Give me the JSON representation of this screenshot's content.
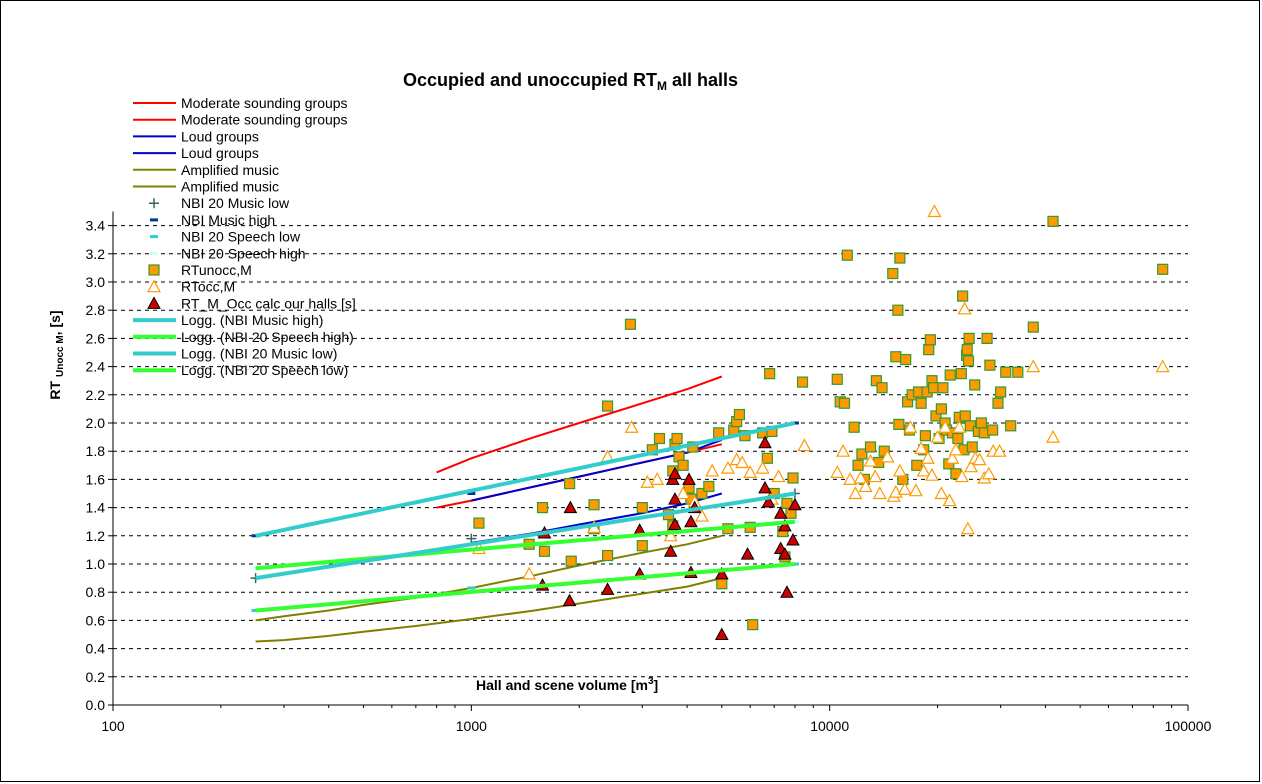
{
  "chart_data": {
    "type": "scatter",
    "title_main": "Occupied and unoccupied RT",
    "title_sub": "M",
    "title_suffix": " all halls",
    "xlabel_main": "Hall and scene volume [m",
    "xlabel_sup": "3",
    "xlabel_end": "]",
    "ylabel_main": "RT ",
    "ylabel_sub": "Unocc M",
    "ylabel_end": ", [s]",
    "x_scale": "log",
    "xlim": [
      100,
      100000
    ],
    "ylim": [
      0,
      3.5
    ],
    "x_ticks": [
      "100",
      "1000",
      "10000",
      "100000"
    ],
    "y_ticks": [
      "0.0",
      "0.2",
      "0.4",
      "0.6",
      "0.8",
      "1.0",
      "1.2",
      "1.4",
      "1.6",
      "1.8",
      "2.0",
      "2.2",
      "2.4",
      "2.6",
      "2.8",
      "3.0",
      "3.2",
      "3.4"
    ],
    "grid": "horizontal dashed",
    "legend_position": "top-left",
    "series": [
      {
        "name": "Moderate sounding groups",
        "kind": "line",
        "color": "#ff0000",
        "points": [
          [
            800,
            1.65
          ],
          [
            1000,
            1.75
          ],
          [
            1500,
            1.9
          ],
          [
            2000,
            2.0
          ],
          [
            3000,
            2.14
          ],
          [
            4000,
            2.24
          ],
          [
            5000,
            2.33
          ]
        ]
      },
      {
        "name": "Moderate sounding groups",
        "kind": "line",
        "color": "#ff0000",
        "points": [
          [
            800,
            1.4
          ],
          [
            1000,
            1.45
          ],
          [
            1500,
            1.55
          ],
          [
            2000,
            1.62
          ],
          [
            3000,
            1.72
          ],
          [
            4000,
            1.79
          ],
          [
            5000,
            1.85
          ]
        ]
      },
      {
        "name": "Loud groups",
        "kind": "line",
        "color": "#0000cc",
        "points": [
          [
            1000,
            1.45
          ],
          [
            1500,
            1.55
          ],
          [
            2000,
            1.62
          ],
          [
            3000,
            1.72
          ],
          [
            4000,
            1.79
          ],
          [
            5000,
            1.88
          ]
        ]
      },
      {
        "name": "Loud groups",
        "kind": "line",
        "color": "#0000cc",
        "points": [
          [
            1000,
            1.15
          ],
          [
            1500,
            1.22
          ],
          [
            2000,
            1.28
          ],
          [
            3000,
            1.36
          ],
          [
            4000,
            1.43
          ],
          [
            5000,
            1.5
          ]
        ]
      },
      {
        "name": "Amplified music",
        "kind": "line",
        "color": "#808000",
        "points": [
          [
            250,
            0.6
          ],
          [
            300,
            0.63
          ],
          [
            400,
            0.67
          ],
          [
            500,
            0.71
          ],
          [
            700,
            0.76
          ],
          [
            1000,
            0.83
          ],
          [
            1500,
            0.92
          ],
          [
            2000,
            0.99
          ],
          [
            3000,
            1.08
          ],
          [
            4000,
            1.14
          ],
          [
            5000,
            1.2
          ]
        ]
      },
      {
        "name": "Amplified music",
        "kind": "line",
        "color": "#808000",
        "points": [
          [
            250,
            0.45
          ],
          [
            300,
            0.46
          ],
          [
            400,
            0.49
          ],
          [
            500,
            0.52
          ],
          [
            700,
            0.56
          ],
          [
            1000,
            0.61
          ],
          [
            1500,
            0.67
          ],
          [
            2000,
            0.72
          ],
          [
            3000,
            0.79
          ],
          [
            4000,
            0.84
          ],
          [
            5000,
            0.9
          ]
        ]
      },
      {
        "name": "NBI 20 Music low",
        "kind": "marker-plus",
        "color": "#336666",
        "points": [
          [
            250,
            0.9
          ],
          [
            1000,
            1.18
          ],
          [
            8000,
            1.5
          ]
        ]
      },
      {
        "name": "NBI Music high",
        "kind": "marker-dash",
        "color": "#003399",
        "points": [
          [
            250,
            1.2
          ],
          [
            1000,
            1.5
          ],
          [
            8000,
            2.0
          ]
        ]
      },
      {
        "name": "NBI 20 Speech low",
        "kind": "marker-dash",
        "color": "#33cccc",
        "points": [
          [
            250,
            0.67
          ],
          [
            1000,
            0.83
          ],
          [
            8000,
            1.0
          ]
        ]
      },
      {
        "name": "NBI 20 Speech high",
        "kind": "marker-dash",
        "color": "#ccffff",
        "points": [
          [
            250,
            0.97
          ],
          [
            1000,
            1.1
          ],
          [
            8000,
            1.3
          ]
        ]
      },
      {
        "name": "RTunocc,M",
        "kind": "marker-square",
        "color": "#ff9900",
        "stroke": "#339933",
        "points": [
          [
            1050,
            1.29
          ],
          [
            1450,
            1.14
          ],
          [
            1580,
            1.4
          ],
          [
            1600,
            1.09
          ],
          [
            1880,
            1.57
          ],
          [
            1900,
            1.02
          ],
          [
            2200,
            1.42
          ],
          [
            2200,
            1.25
          ],
          [
            2400,
            1.06
          ],
          [
            2400,
            2.12
          ],
          [
            2780,
            2.7
          ],
          [
            3000,
            1.13
          ],
          [
            3000,
            1.4
          ],
          [
            3200,
            1.81
          ],
          [
            3350,
            1.89
          ],
          [
            3550,
            1.35
          ],
          [
            3650,
            1.27
          ],
          [
            3650,
            1.66
          ],
          [
            3700,
            1.85
          ],
          [
            3750,
            1.89
          ],
          [
            3800,
            1.76
          ],
          [
            3900,
            1.7
          ],
          [
            4050,
            1.54
          ],
          [
            4100,
            1.46
          ],
          [
            4150,
            1.83
          ],
          [
            4400,
            1.5
          ],
          [
            4600,
            1.55
          ],
          [
            4900,
            1.93
          ],
          [
            5000,
            0.86
          ],
          [
            5200,
            1.25
          ],
          [
            5400,
            1.95
          ],
          [
            5500,
            2.01
          ],
          [
            5600,
            2.06
          ],
          [
            5800,
            1.91
          ],
          [
            6000,
            1.26
          ],
          [
            6100,
            0.57
          ],
          [
            6500,
            1.93
          ],
          [
            6700,
            1.75
          ],
          [
            6800,
            2.35
          ],
          [
            6900,
            1.94
          ],
          [
            7000,
            1.5
          ],
          [
            7400,
            1.23
          ],
          [
            7500,
            1.05
          ],
          [
            7600,
            1.43
          ],
          [
            7800,
            1.36
          ],
          [
            7900,
            1.61
          ],
          [
            8400,
            2.29
          ],
          [
            10500,
            2.31
          ],
          [
            10700,
            2.15
          ],
          [
            11000,
            2.14
          ],
          [
            11200,
            3.19
          ],
          [
            11700,
            1.97
          ],
          [
            12000,
            1.7
          ],
          [
            12300,
            1.78
          ],
          [
            12500,
            1.6
          ],
          [
            13000,
            1.83
          ],
          [
            13500,
            2.3
          ],
          [
            13700,
            1.72
          ],
          [
            14000,
            2.25
          ],
          [
            14200,
            1.8
          ],
          [
            15000,
            3.06
          ],
          [
            15300,
            2.47
          ],
          [
            15500,
            2.8
          ],
          [
            15600,
            1.99
          ],
          [
            15700,
            3.17
          ],
          [
            16000,
            1.6
          ],
          [
            16300,
            2.45
          ],
          [
            16500,
            2.15
          ],
          [
            16700,
            1.95
          ],
          [
            17000,
            2.2
          ],
          [
            17500,
            1.7
          ],
          [
            17700,
            2.22
          ],
          [
            18000,
            2.14
          ],
          [
            18300,
            1.81
          ],
          [
            18500,
            1.91
          ],
          [
            18700,
            2.22
          ],
          [
            18900,
            2.52
          ],
          [
            19100,
            2.59
          ],
          [
            19300,
            2.3
          ],
          [
            19500,
            2.25
          ],
          [
            19800,
            2.05
          ],
          [
            20200,
            1.89
          ],
          [
            20500,
            2.1
          ],
          [
            20700,
            2.25
          ],
          [
            21000,
            2.0
          ],
          [
            21200,
            1.95
          ],
          [
            21500,
            1.71
          ],
          [
            21700,
            2.34
          ],
          [
            22000,
            1.93
          ],
          [
            22500,
            1.64
          ],
          [
            22800,
            1.89
          ],
          [
            23000,
            2.04
          ],
          [
            23300,
            2.35
          ],
          [
            23500,
            2.9
          ],
          [
            23700,
            1.81
          ],
          [
            23900,
            2.05
          ],
          [
            24100,
            2.48
          ],
          [
            24200,
            2.52
          ],
          [
            24400,
            2.44
          ],
          [
            24500,
            2.6
          ],
          [
            24700,
            1.98
          ],
          [
            25000,
            1.83
          ],
          [
            25400,
            2.27
          ],
          [
            26000,
            1.94
          ],
          [
            26500,
            2.0
          ],
          [
            27000,
            1.93
          ],
          [
            27500,
            2.6
          ],
          [
            28000,
            2.41
          ],
          [
            28500,
            1.95
          ],
          [
            29500,
            2.14
          ],
          [
            30000,
            2.22
          ],
          [
            31000,
            2.36
          ],
          [
            32000,
            1.98
          ],
          [
            33500,
            2.36
          ],
          [
            37000,
            2.68
          ],
          [
            42000,
            3.43
          ],
          [
            85000,
            3.09
          ]
        ]
      },
      {
        "name": "RTocc,M",
        "kind": "marker-triangle-open",
        "color": "#ff9900",
        "points": [
          [
            1050,
            1.11
          ],
          [
            1450,
            0.93
          ],
          [
            2200,
            1.26
          ],
          [
            2400,
            1.76
          ],
          [
            2800,
            1.97
          ],
          [
            3100,
            1.58
          ],
          [
            3300,
            1.6
          ],
          [
            3600,
            1.2
          ],
          [
            3900,
            1.5
          ],
          [
            4200,
            1.44
          ],
          [
            4400,
            1.34
          ],
          [
            4700,
            1.66
          ],
          [
            5200,
            1.68
          ],
          [
            5500,
            1.74
          ],
          [
            5700,
            1.72
          ],
          [
            6000,
            1.65
          ],
          [
            6500,
            1.68
          ],
          [
            6900,
            1.46
          ],
          [
            7200,
            1.62
          ],
          [
            8500,
            1.84
          ],
          [
            10500,
            1.65
          ],
          [
            10900,
            1.8
          ],
          [
            11400,
            1.6
          ],
          [
            11800,
            1.5
          ],
          [
            12200,
            1.61
          ],
          [
            12600,
            1.55
          ],
          [
            13000,
            1.73
          ],
          [
            13400,
            1.62
          ],
          [
            13800,
            1.5
          ],
          [
            14500,
            1.76
          ],
          [
            15100,
            1.48
          ],
          [
            15300,
            1.51
          ],
          [
            15700,
            1.66
          ],
          [
            16200,
            1.53
          ],
          [
            16800,
            1.97
          ],
          [
            17400,
            1.52
          ],
          [
            18000,
            1.82
          ],
          [
            18300,
            1.66
          ],
          [
            18800,
            1.75
          ],
          [
            19300,
            1.63
          ],
          [
            19600,
            3.5
          ],
          [
            20000,
            1.9
          ],
          [
            20500,
            1.5
          ],
          [
            21000,
            1.97
          ],
          [
            21600,
            1.45
          ],
          [
            22000,
            1.75
          ],
          [
            22500,
            1.81
          ],
          [
            23000,
            1.97
          ],
          [
            23400,
            1.62
          ],
          [
            23800,
            2.81
          ],
          [
            24300,
            1.25
          ],
          [
            24800,
            1.69
          ],
          [
            25500,
            1.75
          ],
          [
            26200,
            1.74
          ],
          [
            27000,
            1.61
          ],
          [
            27800,
            1.64
          ],
          [
            28600,
            1.8
          ],
          [
            29800,
            1.8
          ],
          [
            37000,
            2.4
          ],
          [
            42000,
            1.9
          ],
          [
            85000,
            2.4
          ]
        ]
      },
      {
        "name": "RT_M_Occ calc our halls [s]",
        "kind": "marker-triangle-filled",
        "color": "#cc0000",
        "points": [
          [
            1580,
            0.85
          ],
          [
            1600,
            1.22
          ],
          [
            1880,
            0.74
          ],
          [
            1890,
            1.4
          ],
          [
            2400,
            0.82
          ],
          [
            2950,
            0.93
          ],
          [
            2950,
            1.24
          ],
          [
            3600,
            1.09
          ],
          [
            3650,
            1.6
          ],
          [
            3700,
            1.64
          ],
          [
            3700,
            1.28
          ],
          [
            3700,
            1.46
          ],
          [
            4050,
            1.6
          ],
          [
            4100,
            1.3
          ],
          [
            4100,
            0.94
          ],
          [
            4200,
            1.4
          ],
          [
            5000,
            0.5
          ],
          [
            5000,
            0.93
          ],
          [
            5900,
            1.07
          ],
          [
            6600,
            1.54
          ],
          [
            6600,
            1.86
          ],
          [
            6750,
            1.44
          ],
          [
            7300,
            1.36
          ],
          [
            7300,
            1.11
          ],
          [
            7500,
            1.07
          ],
          [
            7500,
            1.27
          ],
          [
            7600,
            0.8
          ],
          [
            7900,
            1.17
          ],
          [
            8000,
            1.42
          ]
        ]
      },
      {
        "name": "Logg. (NBI Music high)",
        "kind": "line",
        "color": "#33cccc",
        "width": 4,
        "fn": [
          1.2,
          0.2307
        ]
      },
      {
        "name": "Logg. (NBI 20 Speech high)",
        "kind": "line",
        "color": "#33ff33",
        "width": 4,
        "fn": [
          0.97,
          0.0952
        ]
      },
      {
        "name": "Logg. (NBI 20 Music low)",
        "kind": "line",
        "color": "#33cccc",
        "width": 4,
        "fn": [
          0.9,
          0.1731
        ]
      },
      {
        "name": "Logg. (NBI 20 Speech low)",
        "kind": "line",
        "color": "#33ff33",
        "width": 4,
        "fn": [
          0.67,
          0.0952
        ]
      }
    ]
  }
}
